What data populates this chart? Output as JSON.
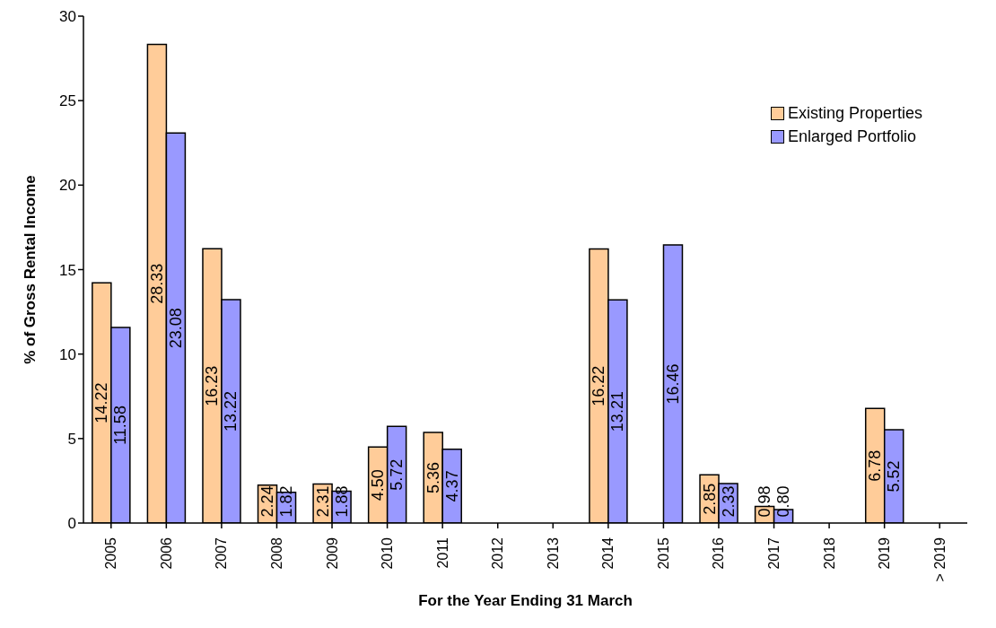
{
  "chart_data": {
    "type": "bar",
    "ylabel": "% of Gross Rental Income",
    "xlabel": "For the Year Ending 31 March",
    "categories": [
      "2005",
      "2006",
      "2007",
      "2008",
      "2009",
      "2010",
      "2011",
      "2012",
      "2013",
      "2014",
      "2015",
      "2016",
      "2017",
      "2018",
      "2019",
      "> 2019"
    ],
    "series": [
      {
        "name": "Existing Properties",
        "color": "#ffcc99",
        "values": [
          14.22,
          28.33,
          16.23,
          2.24,
          2.31,
          4.5,
          5.36,
          null,
          null,
          16.22,
          null,
          2.85,
          0.98,
          null,
          6.78,
          null
        ],
        "value_labels": [
          "14.22",
          "28.33",
          "16.23",
          "2.24",
          "2.31",
          "4.50",
          "5.36",
          null,
          null,
          "16.22",
          null,
          "2.85",
          "0.98",
          null,
          "6.78",
          null
        ]
      },
      {
        "name": "Enlarged Portfolio",
        "color": "#9999ff",
        "values": [
          11.58,
          23.08,
          13.22,
          1.82,
          1.88,
          5.72,
          4.37,
          null,
          null,
          13.21,
          16.46,
          2.33,
          0.8,
          null,
          5.52,
          null
        ],
        "value_labels": [
          "11.58",
          "23.08",
          "13.22",
          "1.82",
          "1.88",
          "5.72",
          "4.37",
          null,
          null,
          "13.21",
          "16.46",
          "2.33",
          "0.80",
          null,
          "5.52",
          null
        ]
      }
    ],
    "ylim": [
      0,
      30
    ],
    "yticks": [
      0,
      5,
      10,
      15,
      20,
      25,
      30
    ],
    "grid": false,
    "legend": "top right"
  }
}
